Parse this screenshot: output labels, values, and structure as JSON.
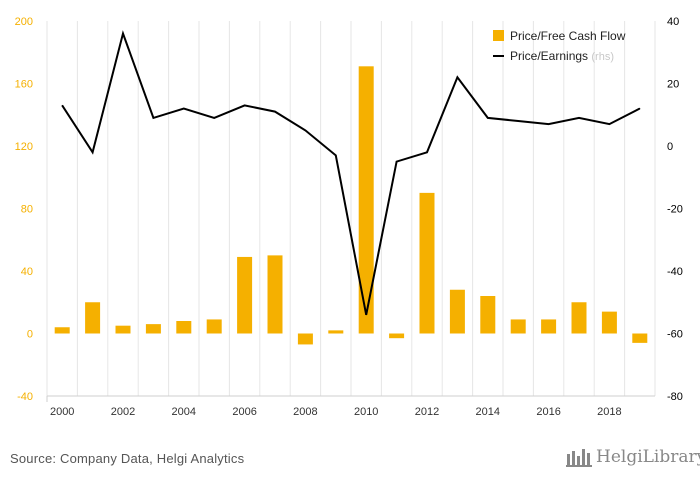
{
  "chart_data": {
    "type": "bar+line",
    "x": [
      "2000",
      "2001",
      "2002",
      "2003",
      "2004",
      "2005",
      "2006",
      "2007",
      "2008",
      "2009",
      "2010",
      "2011",
      "2012",
      "2013",
      "2014",
      "2015",
      "2016",
      "2017",
      "2018",
      "2019"
    ],
    "x_tick_labels": [
      "2000",
      "2002",
      "2004",
      "2006",
      "2008",
      "2010",
      "2012",
      "2014",
      "2016",
      "2018"
    ],
    "series": [
      {
        "name": "Price/Free Cash Flow",
        "kind": "bar",
        "axis": "left",
        "color": "#F5B000",
        "values": [
          4,
          20,
          5,
          6,
          8,
          9,
          49,
          50,
          -7,
          2,
          171,
          -3,
          90,
          28,
          24,
          9,
          9,
          20,
          14,
          -6
        ]
      },
      {
        "name": "Price/Earnings",
        "name_suffix": "(rhs)",
        "kind": "line",
        "axis": "right",
        "color": "#000000",
        "values": [
          13,
          -2,
          36,
          9,
          12,
          9,
          13,
          11,
          5,
          -3,
          -54,
          -5,
          -2,
          22,
          9,
          8,
          7,
          9,
          7,
          12
        ]
      }
    ],
    "y_left": {
      "ticks": [
        "200",
        "160",
        "120",
        "80",
        "40",
        "0",
        "-40"
      ],
      "ylim": [
        -40,
        200
      ],
      "tick_color": "#F5B000"
    },
    "y_right": {
      "ticks": [
        "40",
        "20",
        "0",
        "-20",
        "-40",
        "-60",
        "-80"
      ],
      "ylim": [
        -80,
        40
      ],
      "tick_color": "#000000"
    },
    "legend_position": "top-right",
    "grid": "vertical"
  },
  "footer": {
    "source": "Source: Company Data, Helgi Analytics",
    "brand": "HelgiLibrary"
  }
}
